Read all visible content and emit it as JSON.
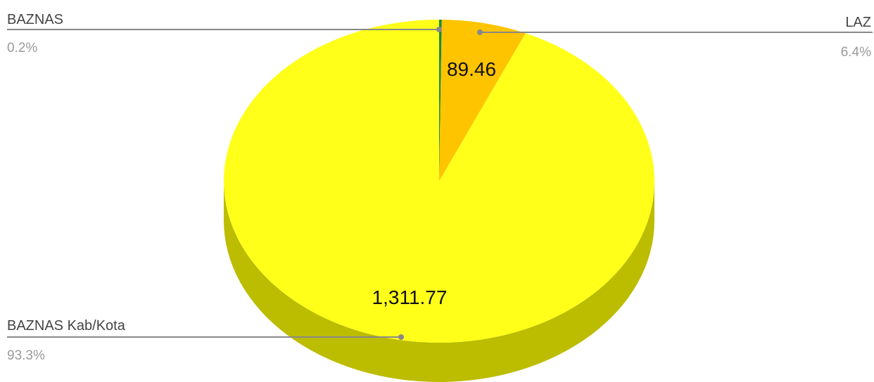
{
  "chart_data": {
    "type": "pie",
    "style": "3d",
    "slices": [
      {
        "name": "BAZNAS",
        "value": 2.8,
        "value_label": "",
        "percent_label": "0.2%",
        "color": "#1e8a3a",
        "side_color": "#146028"
      },
      {
        "name": "LAZ",
        "value": 89.46,
        "value_label": "89.46",
        "percent_label": "6.4%",
        "color": "#ffc400",
        "side_color": "#c49600"
      },
      {
        "name": "BAZNAS Kab/Kota",
        "value": 1311.77,
        "value_label": "1,311.77",
        "percent_label": "93.3%",
        "color": "#ffff1a",
        "side_color": "#bcbc00"
      }
    ],
    "legend": "leader-lines",
    "title": ""
  }
}
